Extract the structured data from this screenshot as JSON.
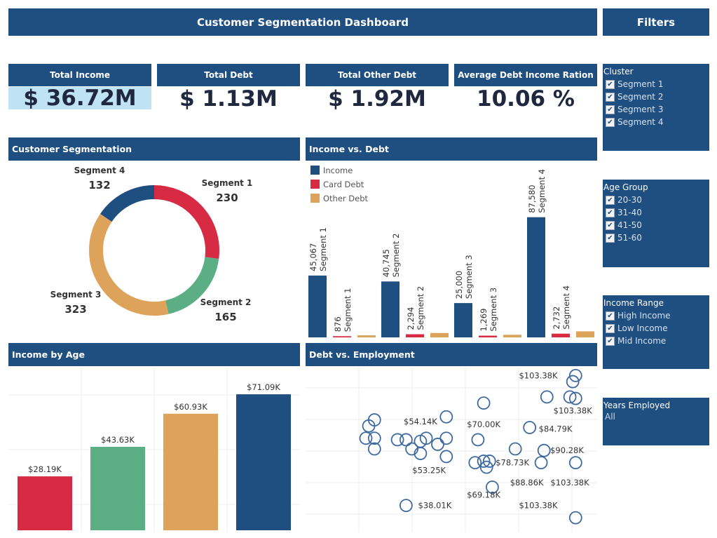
{
  "title": "Customer Segmentation Dashboard",
  "filters_title": "Filters",
  "kpis": [
    {
      "label": "Total Income",
      "value": "$ 36.72M",
      "highlight": true
    },
    {
      "label": "Total Debt",
      "value": "$ 1.13M",
      "highlight": false
    },
    {
      "label": "Total Other Debt",
      "value": "$ 1.92M",
      "highlight": false
    },
    {
      "label": "Average Debt Income Ration",
      "value": "10.06 %",
      "highlight": false
    }
  ],
  "sections": {
    "segmentation": "Customer Segmentation",
    "income_debt": "Income vs. Debt",
    "income_age": "Income by Age",
    "debt_employment": "Debt vs. Employment"
  },
  "filters": {
    "cluster": {
      "title": "Cluster",
      "items": [
        "Segment 1",
        "Segment 2",
        "Segment 3",
        "Segment 4"
      ]
    },
    "age_group": {
      "title": "Age Group",
      "items": [
        "20-30",
        "31-40",
        "41-50",
        "51-60"
      ]
    },
    "income_range": {
      "title": "Income Range",
      "items": [
        "High Income",
        "Low Income",
        "Mid Income"
      ]
    },
    "years_employed": {
      "title": "Years Employed",
      "value": "All"
    }
  },
  "colors": {
    "header": "#1f4e80",
    "income": "#1f4e80",
    "card_debt": "#d62b42",
    "other_debt": "#dda35a",
    "segment2": "#5caf84",
    "kpi_highlight": "#bfe3f2"
  },
  "chart_data": [
    {
      "type": "pie",
      "title": "Customer Segmentation",
      "slices": [
        {
          "name": "Segment 1",
          "value": 230,
          "color": "#d62b42"
        },
        {
          "name": "Segment 2",
          "value": 165,
          "color": "#5caf84"
        },
        {
          "name": "Segment 3",
          "value": 323,
          "color": "#dda35a"
        },
        {
          "name": "Segment 4",
          "value": 132,
          "color": "#1f4e80"
        }
      ]
    },
    {
      "type": "bar",
      "title": "Income vs. Debt",
      "legend": [
        "Income",
        "Card Debt",
        "Other Debt"
      ],
      "legend_position": "top-left",
      "categories": [
        "Segment 1",
        "Segment 2",
        "Segment 3",
        "Segment 4"
      ],
      "series": [
        {
          "name": "Income",
          "values": [
            45067,
            40745,
            25000,
            87580
          ],
          "color": "#1f4e80"
        },
        {
          "name": "Card Debt",
          "values": [
            876,
            2294,
            1269,
            2732
          ],
          "color": "#d62b42"
        },
        {
          "name": "Other Debt",
          "values": [
            1500,
            3200,
            1900,
            4400
          ],
          "color": "#dda35a"
        }
      ],
      "data_labels": [
        "45,067",
        "876",
        "40,745",
        "2,294",
        "25,000",
        "1,269",
        "87,580",
        "2,732"
      ],
      "ylim": [
        0,
        92000
      ]
    },
    {
      "type": "bar",
      "title": "Income by Age",
      "categories": [
        "20-30",
        "31-40",
        "41-50",
        "51-60"
      ],
      "values": [
        28.19,
        43.63,
        60.93,
        71.09
      ],
      "labels": [
        "$28.19K",
        "$43.63K",
        "$60.93K",
        "$71.09K"
      ],
      "colors": [
        "#d62b42",
        "#5caf84",
        "#dda35a",
        "#1f4e80"
      ],
      "ylim": [
        0,
        77
      ]
    },
    {
      "type": "scatter",
      "title": "Debt vs. Employment",
      "xlim": [
        0,
        10
      ],
      "ylim": [
        0,
        10
      ],
      "points": [
        {
          "x": 2.3,
          "y": 6.9
        },
        {
          "x": 2.1,
          "y": 6.5
        },
        {
          "x": 2.0,
          "y": 5.7
        },
        {
          "x": 2.3,
          "y": 5.7
        },
        {
          "x": 2.3,
          "y": 5.0
        },
        {
          "x": 3.1,
          "y": 5.6
        },
        {
          "x": 3.4,
          "y": 5.6
        },
        {
          "x": 3.6,
          "y": 5.0
        },
        {
          "x": 3.9,
          "y": 5.5
        },
        {
          "x": 4.1,
          "y": 5.7
        },
        {
          "x": 3.9,
          "y": 4.7
        },
        {
          "x": 4.5,
          "y": 5.3
        },
        {
          "x": 4.8,
          "y": 5.7
        },
        {
          "x": 4.8,
          "y": 4.5
        },
        {
          "x": 4.8,
          "y": 7.1
        },
        {
          "x": 3.4,
          "y": 1.3
        },
        {
          "x": 5.9,
          "y": 5.6
        },
        {
          "x": 6.1,
          "y": 8.0
        },
        {
          "x": 5.8,
          "y": 4.1
        },
        {
          "x": 6.1,
          "y": 4.2
        },
        {
          "x": 6.3,
          "y": 4.2
        },
        {
          "x": 6.2,
          "y": 3.8
        },
        {
          "x": 6.4,
          "y": 2.5
        },
        {
          "x": 7.2,
          "y": 5.0
        },
        {
          "x": 7.7,
          "y": 6.4
        },
        {
          "x": 8.2,
          "y": 4.9
        },
        {
          "x": 8.1,
          "y": 4.1
        },
        {
          "x": 8.3,
          "y": 8.4
        },
        {
          "x": 9.1,
          "y": 8.4
        },
        {
          "x": 9.3,
          "y": 9.8
        },
        {
          "x": 9.2,
          "y": 9.4
        },
        {
          "x": 9.3,
          "y": 8.3
        },
        {
          "x": 9.3,
          "y": 4.1
        },
        {
          "x": 9.3,
          "y": 0.5
        }
      ],
      "labels": [
        {
          "text": "$103.38K",
          "x": 8.0,
          "y": 9.8
        },
        {
          "text": "$103.38K",
          "x": 9.2,
          "y": 7.5
        },
        {
          "text": "$54.14K",
          "x": 3.9,
          "y": 6.8
        },
        {
          "text": "$70.00K",
          "x": 6.1,
          "y": 6.6
        },
        {
          "text": "$84.79K",
          "x": 8.6,
          "y": 6.3
        },
        {
          "text": "$90.28K",
          "x": 9.0,
          "y": 4.9
        },
        {
          "text": "$78.73K",
          "x": 7.1,
          "y": 4.1
        },
        {
          "text": "$53.25K",
          "x": 4.2,
          "y": 3.6
        },
        {
          "text": "$88.86K",
          "x": 7.6,
          "y": 2.8
        },
        {
          "text": "$103.38K",
          "x": 9.1,
          "y": 2.8
        },
        {
          "text": "$69.18K",
          "x": 6.1,
          "y": 2.0
        },
        {
          "text": "$38.01K",
          "x": 4.4,
          "y": 1.3
        },
        {
          "text": "$103.38K",
          "x": 8.0,
          "y": 1.3
        }
      ]
    }
  ]
}
